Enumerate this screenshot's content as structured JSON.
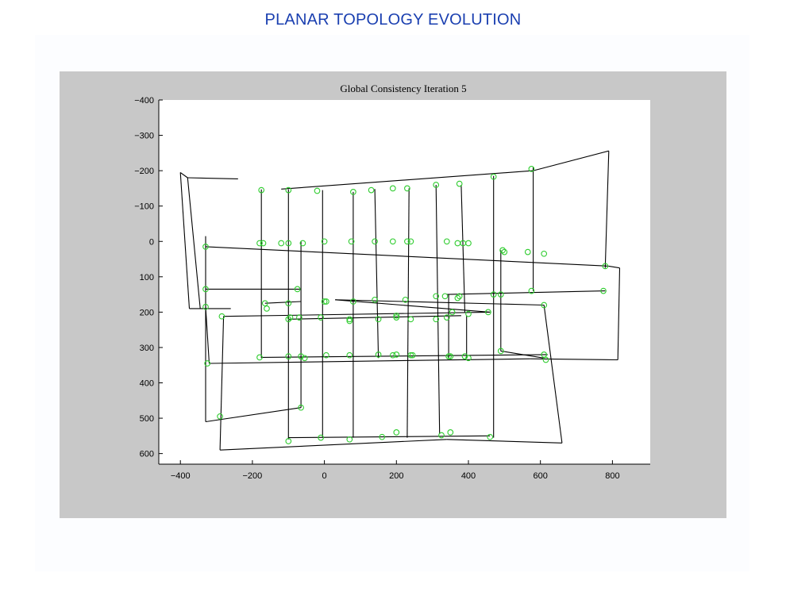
{
  "slide": {
    "title": "PLANAR TOPOLOGY EVOLUTION"
  },
  "chart_data": {
    "type": "scatter",
    "title": "Global Consistency Iteration 5",
    "xlabel": "",
    "ylabel": "",
    "xlim": [
      -460,
      905
    ],
    "ylim": [
      -400,
      630
    ],
    "y_inverted": true,
    "grid": false,
    "xticks": [
      -400,
      -200,
      0,
      200,
      400,
      600,
      800
    ],
    "yticks": [
      -400,
      -300,
      -200,
      -100,
      0,
      100,
      200,
      300,
      400,
      500,
      600
    ],
    "colors": {
      "edges": "#000000",
      "markers": "#2ecc2e",
      "plot_bg": "#ffffff",
      "figure_bg": "#c8c8c8"
    },
    "edges": [
      [
        [
          -400,
          -195
        ],
        [
          -380,
          -180
        ]
      ],
      [
        [
          -380,
          -180
        ],
        [
          -240,
          -177
        ]
      ],
      [
        [
          -400,
          -195
        ],
        [
          -375,
          190
        ]
      ],
      [
        [
          -375,
          190
        ],
        [
          -260,
          190
        ]
      ],
      [
        [
          -120,
          -148
        ],
        [
          580,
          -200
        ]
      ],
      [
        [
          580,
          -200
        ],
        [
          790,
          -256
        ]
      ],
      [
        [
          790,
          -256
        ],
        [
          780,
          75
        ]
      ],
      [
        [
          -380,
          -180
        ],
        [
          -345,
          190
        ]
      ],
      [
        [
          -330,
          15
        ],
        [
          790,
          70
        ]
      ],
      [
        [
          790,
          70
        ],
        [
          820,
          75
        ]
      ],
      [
        [
          820,
          75
        ],
        [
          815,
          335
        ]
      ],
      [
        [
          -330,
          135
        ],
        [
          -65,
          135
        ]
      ],
      [
        [
          -330,
          -15
        ],
        [
          -330,
          510
        ]
      ],
      [
        [
          -330,
          185
        ],
        [
          -320,
          345
        ]
      ],
      [
        [
          -320,
          345
        ],
        [
          570,
          332
        ]
      ],
      [
        [
          570,
          332
        ],
        [
          815,
          335
        ]
      ],
      [
        [
          -330,
          510
        ],
        [
          -65,
          470
        ]
      ],
      [
        [
          -280,
          212
        ],
        [
          -290,
          590
        ]
      ],
      [
        [
          -290,
          590
        ],
        [
          340,
          560
        ]
      ],
      [
        [
          340,
          560
        ],
        [
          660,
          570
        ]
      ],
      [
        [
          660,
          570
        ],
        [
          610,
          180
        ]
      ],
      [
        [
          610,
          180
        ],
        [
          30,
          165
        ]
      ],
      [
        [
          -280,
          212
        ],
        [
          460,
          200
        ]
      ],
      [
        [
          30,
          165
        ],
        [
          460,
          200
        ]
      ],
      [
        [
          -175,
          -147
        ],
        [
          -175,
          330
        ]
      ],
      [
        [
          -100,
          -147
        ],
        [
          -100,
          560
        ]
      ],
      [
        [
          -5,
          -145
        ],
        [
          -5,
          555
        ]
      ],
      [
        [
          80,
          -140
        ],
        [
          80,
          555
        ]
      ],
      [
        [
          140,
          -148
        ],
        [
          150,
          330
        ]
      ],
      [
        [
          235,
          -150
        ],
        [
          230,
          555
        ]
      ],
      [
        [
          310,
          -160
        ],
        [
          320,
          545
        ]
      ],
      [
        [
          380,
          -160
        ],
        [
          390,
          200
        ]
      ],
      [
        [
          470,
          -185
        ],
        [
          470,
          555
        ]
      ],
      [
        [
          580,
          -210
        ],
        [
          580,
          140
        ]
      ],
      [
        [
          -175,
          328
        ],
        [
          620,
          320
        ]
      ],
      [
        [
          -65,
          0
        ],
        [
          -65,
          470
        ]
      ],
      [
        [
          340,
          150
        ],
        [
          780,
          140
        ]
      ],
      [
        [
          -100,
          555
        ],
        [
          460,
          550
        ]
      ],
      [
        [
          345,
          150
        ],
        [
          345,
          330
        ]
      ],
      [
        [
          395,
          210
        ],
        [
          395,
          330
        ]
      ],
      [
        [
          490,
          25
        ],
        [
          490,
          310
        ]
      ],
      [
        [
          490,
          310
        ],
        [
          610,
          330
        ]
      ],
      [
        [
          -100,
          220
        ],
        [
          380,
          210
        ]
      ],
      [
        [
          -165,
          175
        ],
        [
          -65,
          170
        ]
      ]
    ],
    "points": [
      [
        -175,
        -145
      ],
      [
        -100,
        -145
      ],
      [
        -20,
        -143
      ],
      [
        80,
        -140
      ],
      [
        130,
        -145
      ],
      [
        190,
        -150
      ],
      [
        230,
        -150
      ],
      [
        310,
        -160
      ],
      [
        375,
        -163
      ],
      [
        470,
        -183
      ],
      [
        575,
        -205
      ],
      [
        780,
        70
      ],
      [
        -330,
        15
      ],
      [
        -180,
        5
      ],
      [
        -170,
        5
      ],
      [
        -120,
        5
      ],
      [
        -100,
        5
      ],
      [
        -60,
        5
      ],
      [
        0,
        0
      ],
      [
        75,
        0
      ],
      [
        140,
        0
      ],
      [
        190,
        0
      ],
      [
        230,
        0
      ],
      [
        240,
        0
      ],
      [
        340,
        0
      ],
      [
        370,
        5
      ],
      [
        385,
        5
      ],
      [
        400,
        5
      ],
      [
        495,
        25
      ],
      [
        500,
        30
      ],
      [
        565,
        30
      ],
      [
        610,
        35
      ],
      [
        -330,
        135
      ],
      [
        -330,
        185
      ],
      [
        -165,
        175
      ],
      [
        -160,
        190
      ],
      [
        -100,
        175
      ],
      [
        -75,
        135
      ],
      [
        0,
        170
      ],
      [
        5,
        170
      ],
      [
        80,
        170
      ],
      [
        140,
        165
      ],
      [
        225,
        165
      ],
      [
        310,
        155
      ],
      [
        335,
        155
      ],
      [
        370,
        160
      ],
      [
        375,
        155
      ],
      [
        470,
        150
      ],
      [
        490,
        150
      ],
      [
        575,
        140
      ],
      [
        610,
        180
      ],
      [
        775,
        140
      ],
      [
        -285,
        212
      ],
      [
        -100,
        220
      ],
      [
        -95,
        215
      ],
      [
        -70,
        215
      ],
      [
        -10,
        215
      ],
      [
        70,
        220
      ],
      [
        70,
        225
      ],
      [
        150,
        220
      ],
      [
        200,
        210
      ],
      [
        200,
        215
      ],
      [
        240,
        220
      ],
      [
        310,
        220
      ],
      [
        340,
        215
      ],
      [
        355,
        200
      ],
      [
        400,
        205
      ],
      [
        455,
        200
      ],
      [
        -325,
        345
      ],
      [
        -180,
        328
      ],
      [
        -100,
        325
      ],
      [
        -65,
        325
      ],
      [
        -55,
        330
      ],
      [
        5,
        322
      ],
      [
        70,
        322
      ],
      [
        150,
        320
      ],
      [
        190,
        322
      ],
      [
        200,
        320
      ],
      [
        240,
        322
      ],
      [
        245,
        322
      ],
      [
        345,
        325
      ],
      [
        350,
        325
      ],
      [
        390,
        325
      ],
      [
        400,
        330
      ],
      [
        490,
        310
      ],
      [
        610,
        320
      ],
      [
        615,
        335
      ],
      [
        -290,
        495
      ],
      [
        -65,
        470
      ],
      [
        -100,
        565
      ],
      [
        -10,
        555
      ],
      [
        70,
        560
      ],
      [
        160,
        553
      ],
      [
        200,
        540
      ],
      [
        325,
        548
      ],
      [
        350,
        540
      ],
      [
        460,
        553
      ]
    ]
  }
}
